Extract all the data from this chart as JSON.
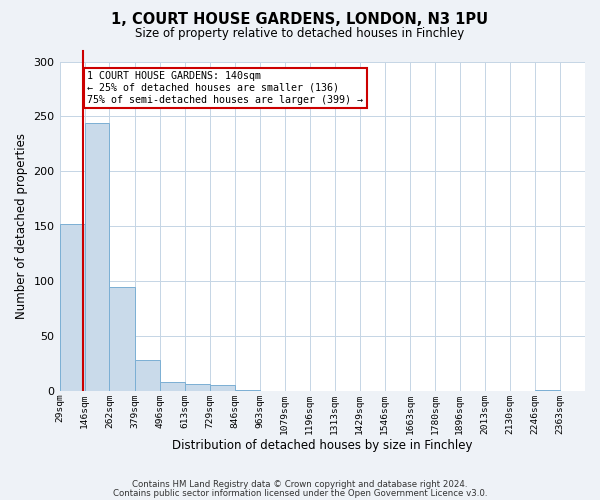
{
  "title": "1, COURT HOUSE GARDENS, LONDON, N3 1PU",
  "subtitle": "Size of property relative to detached houses in Finchley",
  "xlabel": "Distribution of detached houses by size in Finchley",
  "ylabel": "Number of detached properties",
  "bin_edges": [
    29,
    146,
    262,
    379,
    496,
    613,
    729,
    846,
    963,
    1079,
    1196,
    1313,
    1429,
    1546,
    1663,
    1780,
    1896,
    2013,
    2130,
    2246,
    2363
  ],
  "bin_labels": [
    "29sqm",
    "146sqm",
    "262sqm",
    "379sqm",
    "496sqm",
    "613sqm",
    "729sqm",
    "846sqm",
    "963sqm",
    "1079sqm",
    "1196sqm",
    "1313sqm",
    "1429sqm",
    "1546sqm",
    "1663sqm",
    "1780sqm",
    "1896sqm",
    "2013sqm",
    "2130sqm",
    "2246sqm",
    "2363sqm"
  ],
  "bar_heights": [
    152,
    244,
    95,
    28,
    8,
    6,
    5,
    1,
    0,
    0,
    0,
    0,
    0,
    0,
    0,
    0,
    0,
    0,
    0,
    1
  ],
  "bar_color": "#c9daea",
  "bar_edge_color": "#7bafd4",
  "property_line_x": 140,
  "property_line_color": "#cc0000",
  "annotation_line1": "1 COURT HOUSE GARDENS: 140sqm",
  "annotation_line2": "← 25% of detached houses are smaller (136)",
  "annotation_line3": "75% of semi-detached houses are larger (399) →",
  "annotation_box_color": "#cc0000",
  "ylim": [
    0,
    300
  ],
  "yticks": [
    0,
    50,
    100,
    150,
    200,
    250,
    300
  ],
  "footer_line1": "Contains HM Land Registry data © Crown copyright and database right 2024.",
  "footer_line2": "Contains public sector information licensed under the Open Government Licence v3.0.",
  "bg_color": "#eef2f7",
  "plot_bg_color": "#ffffff",
  "grid_color": "#c5d5e5"
}
